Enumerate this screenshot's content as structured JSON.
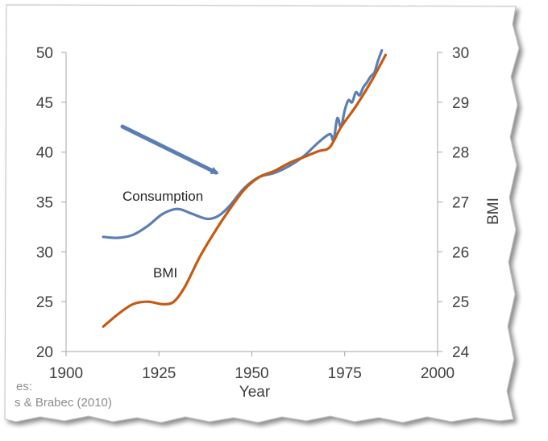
{
  "chart_data": {
    "type": "line",
    "xlabel": "Year",
    "ylabel": "",
    "y2label": "BMI",
    "xlim": [
      1900,
      2000
    ],
    "ylim": [
      20,
      50
    ],
    "y2lim": [
      24,
      30
    ],
    "x_ticks": [
      1900,
      1925,
      1950,
      1975,
      2000
    ],
    "y_ticks": [
      20,
      25,
      30,
      35,
      40,
      45,
      50
    ],
    "y2_ticks": [
      24,
      25,
      26,
      27,
      28,
      29,
      30
    ],
    "grid": false,
    "legend": "none",
    "series": [
      {
        "name": "Consumption",
        "axis": "left",
        "color": "#5b7fb5",
        "x": [
          1910,
          1914,
          1918,
          1922,
          1926,
          1930,
          1934,
          1938,
          1941,
          1944,
          1948,
          1952,
          1956,
          1960,
          1964,
          1968,
          1971,
          1972,
          1973,
          1974,
          1975,
          1976,
          1977,
          1978,
          1979,
          1980,
          1981,
          1982,
          1983,
          1984,
          1985
        ],
        "values": [
          31.5,
          31.4,
          31.7,
          32.6,
          33.8,
          34.3,
          33.8,
          33.3,
          33.6,
          34.6,
          36.4,
          37.5,
          37.9,
          38.6,
          39.6,
          41.0,
          41.8,
          41.2,
          43.4,
          42.5,
          44.2,
          45.2,
          45.0,
          46.0,
          45.7,
          46.5,
          47.0,
          47.6,
          48.0,
          49.2,
          50.2
        ]
      },
      {
        "name": "BMI",
        "axis": "right",
        "color": "#c55a11",
        "x": [
          1910,
          1914,
          1918,
          1922,
          1926,
          1929,
          1932,
          1936,
          1940,
          1944,
          1948,
          1952,
          1956,
          1960,
          1964,
          1968,
          1971,
          1974,
          1978,
          1982,
          1986
        ],
        "values": [
          24.5,
          24.75,
          24.95,
          25.0,
          24.95,
          25.0,
          25.3,
          25.9,
          26.4,
          26.85,
          27.25,
          27.5,
          27.62,
          27.78,
          27.9,
          28.02,
          28.1,
          28.5,
          28.92,
          29.4,
          29.95
        ]
      }
    ],
    "annotations": [
      {
        "text": "Consumption"
      },
      {
        "text": "BMI"
      }
    ],
    "source_fragment_1": "es:",
    "source_fragment_2": "s & Brabec (2010)",
    "arrow_color": "#5b7fb5"
  }
}
